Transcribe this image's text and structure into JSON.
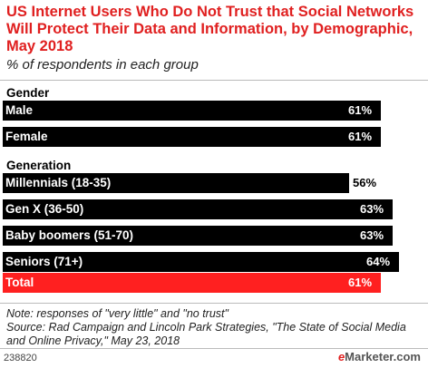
{
  "title": "US Internet Users Who Do Not Trust that Social Networks Will Protect Their Data and Information, by Demographic, May 2018",
  "subtitle": "% of respondents in each group",
  "note": "Note: responses of \"very little\" and \"no trust\"",
  "source": "Source: Rad Campaign and Lincoln Park Strategies, \"The State of Social Media and Online Privacy,\" May 23, 2018",
  "footer_id": "238820",
  "logo": {
    "prefix": "e",
    "suffix": "Marketer.com"
  },
  "colors": {
    "bar": "#000000",
    "total_bar": "#ff2020",
    "title": "#e02020"
  },
  "chart_data": {
    "type": "bar",
    "orientation": "horizontal",
    "xlim": [
      0,
      64
    ],
    "groups": [
      {
        "label": "Gender",
        "items": [
          {
            "category": "Male",
            "value": 61,
            "value_label": "61%"
          },
          {
            "category": "Female",
            "value": 61,
            "value_label": "61%"
          }
        ]
      },
      {
        "label": "Generation",
        "items": [
          {
            "category": "Millennials (18-35)",
            "value": 56,
            "value_label": "56%"
          },
          {
            "category": "Gen X (36-50)",
            "value": 63,
            "value_label": "63%"
          },
          {
            "category": "Baby boomers (51-70)",
            "value": 63,
            "value_label": "63%"
          },
          {
            "category": "Seniors (71+)",
            "value": 64,
            "value_label": "64%"
          }
        ]
      }
    ],
    "total": {
      "category": "Total",
      "value": 61,
      "value_label": "61%"
    }
  }
}
